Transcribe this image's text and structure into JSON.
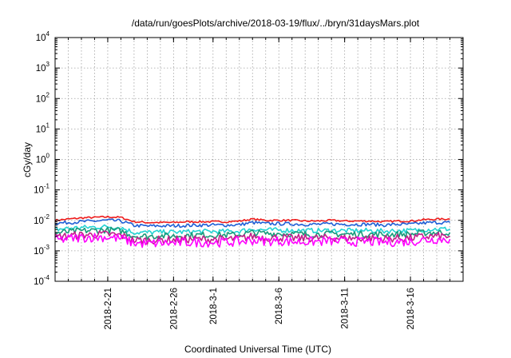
{
  "chart_data": {
    "type": "line",
    "title": "/data/run/goesPlots/archive/2018-03-19/flux/../bryn/31daysMars.plot",
    "xlabel": "Coordinated Universal Time (UTC)",
    "ylabel": "cGy/day",
    "yscale": "log",
    "ylim": [
      0.0001,
      10000
    ],
    "y_ticks": [
      {
        "base": "10",
        "exp": "-4",
        "value": 0.0001
      },
      {
        "base": "10",
        "exp": "-3",
        "value": 0.001
      },
      {
        "base": "10",
        "exp": "-2",
        "value": 0.01
      },
      {
        "base": "10",
        "exp": "-1",
        "value": 0.1
      },
      {
        "base": "10",
        "exp": "0",
        "value": 1
      },
      {
        "base": "10",
        "exp": "1",
        "value": 10
      },
      {
        "base": "10",
        "exp": "2",
        "value": 100
      },
      {
        "base": "10",
        "exp": "3",
        "value": 1000
      },
      {
        "base": "10",
        "exp": "4",
        "value": 10000
      }
    ],
    "xlim": [
      "2018-02-17",
      "2018-03-20"
    ],
    "x_ticks": [
      "2018-2-21",
      "2018-2-26",
      "2018-3-1",
      "2018-3-6",
      "2018-3-11",
      "2018-3-16"
    ],
    "grid": true,
    "legend": "none",
    "x_days": [
      0,
      1,
      2,
      3,
      4,
      5,
      6,
      7,
      8,
      9,
      10,
      11,
      12,
      13,
      14,
      15,
      16,
      17,
      18,
      19,
      20,
      21,
      22,
      23,
      24,
      25,
      26,
      27,
      28,
      29,
      30
    ],
    "series": [
      {
        "color": "#ee1c1c",
        "values": [
          0.01,
          0.011,
          0.012,
          0.0125,
          0.013,
          0.0125,
          0.009,
          0.0085,
          0.0085,
          0.0085,
          0.009,
          0.009,
          0.009,
          0.009,
          0.0095,
          0.011,
          0.01,
          0.01,
          0.01,
          0.0095,
          0.0095,
          0.01,
          0.0095,
          0.0095,
          0.0095,
          0.009,
          0.0095,
          0.0095,
          0.0105,
          0.011,
          0.011
        ]
      },
      {
        "color": "#1f5fd6",
        "values": [
          0.008,
          0.0085,
          0.009,
          0.0095,
          0.01,
          0.0095,
          0.0068,
          0.0065,
          0.0066,
          0.0066,
          0.0068,
          0.007,
          0.007,
          0.007,
          0.0072,
          0.0085,
          0.0078,
          0.0078,
          0.0076,
          0.0074,
          0.0074,
          0.0076,
          0.0074,
          0.0074,
          0.0074,
          0.007,
          0.0074,
          0.0074,
          0.0082,
          0.0085,
          0.0085
        ]
      },
      {
        "color": "#22d3d3",
        "values": [
          0.005,
          0.0055,
          0.0058,
          0.006,
          0.0062,
          0.0058,
          0.004,
          0.004,
          0.0041,
          0.0041,
          0.0042,
          0.0043,
          0.0043,
          0.0043,
          0.0044,
          0.0052,
          0.0048,
          0.0048,
          0.0047,
          0.0046,
          0.0046,
          0.0047,
          0.0046,
          0.0046,
          0.0046,
          0.0044,
          0.0046,
          0.0046,
          0.005,
          0.0052,
          0.0052
        ]
      },
      {
        "color": "#1a9a7a",
        "values": [
          0.0038,
          0.0042,
          0.0045,
          0.0047,
          0.0048,
          0.0045,
          0.0031,
          0.003,
          0.0031,
          0.0031,
          0.0032,
          0.0033,
          0.0033,
          0.0033,
          0.0034,
          0.004,
          0.0037,
          0.0037,
          0.0036,
          0.0035,
          0.0035,
          0.0036,
          0.0035,
          0.0035,
          0.0035,
          0.0034,
          0.0035,
          0.0035,
          0.0039,
          0.004,
          0.004
        ]
      },
      {
        "color": "#c0208a",
        "values": [
          0.0028,
          0.0031,
          0.0033,
          0.0034,
          0.0035,
          0.0032,
          0.0022,
          0.0022,
          0.0023,
          0.0023,
          0.0024,
          0.0024,
          0.0024,
          0.0024,
          0.0025,
          0.003,
          0.0027,
          0.0027,
          0.0026,
          0.0026,
          0.0026,
          0.0027,
          0.0026,
          0.0026,
          0.0026,
          0.0025,
          0.0026,
          0.0026,
          0.0029,
          0.003,
          0.003
        ]
      },
      {
        "color": "#ff00ff",
        "values": [
          0.0022,
          0.0025,
          0.0027,
          0.0028,
          0.0028,
          0.0025,
          0.0018,
          0.0017,
          0.0018,
          0.0018,
          0.0019,
          0.0019,
          0.0019,
          0.0019,
          0.002,
          0.0022,
          0.0021,
          0.0021,
          0.002,
          0.002,
          0.002,
          0.0021,
          0.002,
          0.002,
          0.002,
          0.0019,
          0.002,
          0.002,
          0.0023,
          0.0024,
          0.0024
        ]
      }
    ]
  }
}
